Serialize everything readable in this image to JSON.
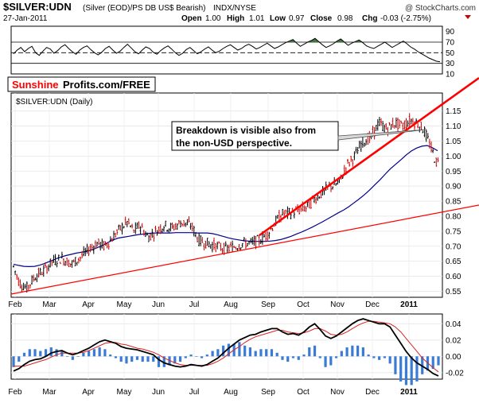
{
  "header": {
    "symbol": "$SILVER:UDN",
    "description": "(Silver (EOD)/PS DB US$ Bearish)",
    "exchange": "INDX/NYSE",
    "watermark": "@ StockCharts.com",
    "date": "27-Jan-2011",
    "ohlc": {
      "open_label": "Open",
      "open": "1.00",
      "high_label": "High",
      "high": "1.01",
      "low_label": "Low",
      "low": "0.97",
      "close_label": "Close",
      "close": "0.98",
      "chg_label": "Chg",
      "chg": "-0.03 (-2.75%)"
    }
  },
  "brand": {
    "part1": "Sunshine",
    "part2": "Profits.com/FREE"
  },
  "colors": {
    "price_up": "#000000",
    "price_down": "#cc0000",
    "moving_average": "#00008b",
    "trendline": "#ff0000",
    "histogram": "#3a7bd5",
    "rsi_fill": "#3c7a3c"
  },
  "chart_data": [
    {
      "type": "line",
      "panel": "rsi",
      "y_ticks": [
        10,
        30,
        50,
        70,
        90
      ],
      "ylim": [
        10,
        100
      ],
      "reference_lines": [
        30,
        50,
        70
      ],
      "values": [
        48,
        55,
        60,
        52,
        58,
        62,
        50,
        45,
        53,
        60,
        57,
        49,
        54,
        61,
        65,
        58,
        52,
        47,
        55,
        60,
        63,
        56,
        50,
        46,
        51,
        58,
        62,
        55,
        49,
        53,
        60,
        66,
        59,
        52,
        48,
        55,
        61,
        58,
        51,
        47,
        54,
        59,
        63,
        57,
        50,
        45,
        49,
        56,
        60,
        54,
        48,
        52,
        57,
        61,
        55,
        50,
        53,
        58,
        62,
        65,
        60,
        55,
        58,
        63,
        66,
        62,
        57,
        60,
        64,
        68,
        63,
        58,
        61,
        65,
        69,
        72,
        75,
        68,
        62,
        66,
        70,
        73,
        77,
        71,
        65,
        60,
        63,
        67,
        72,
        76,
        70,
        64,
        68,
        71,
        74,
        69,
        63,
        60,
        58,
        62,
        66,
        70,
        65,
        60,
        64,
        68,
        72,
        67,
        61,
        57,
        52,
        48,
        44,
        40,
        37,
        34,
        33
      ]
    },
    {
      "type": "bar",
      "panel": "price",
      "title": "$SILVER:UDN (Daily)",
      "ylim": [
        0.53,
        1.21
      ],
      "y_ticks": [
        0.55,
        0.6,
        0.65,
        0.7,
        0.75,
        0.8,
        0.85,
        0.9,
        0.95,
        1.0,
        1.05,
        1.1,
        1.15
      ],
      "x_tick_labels": [
        "Feb",
        "Mar",
        "Apr",
        "May",
        "Jun",
        "Jul",
        "Aug",
        "Sep",
        "Oct",
        "Nov",
        "Dec",
        "2011"
      ],
      "moving_average_values": [
        0.64,
        0.636,
        0.633,
        0.632,
        0.633,
        0.637,
        0.643,
        0.65,
        0.657,
        0.664,
        0.669,
        0.673,
        0.677,
        0.68,
        0.683,
        0.688,
        0.695,
        0.703,
        0.712,
        0.721,
        0.727,
        0.73,
        0.733,
        0.736,
        0.739,
        0.741,
        0.743,
        0.744,
        0.744,
        0.744,
        0.744,
        0.745,
        0.745,
        0.745,
        0.745,
        0.744,
        0.744,
        0.744,
        0.742,
        0.738,
        0.733,
        0.728,
        0.724,
        0.721,
        0.718,
        0.717,
        0.716,
        0.716,
        0.716,
        0.717,
        0.719,
        0.722,
        0.727,
        0.733,
        0.74,
        0.747,
        0.755,
        0.763,
        0.772,
        0.781,
        0.791,
        0.801,
        0.811,
        0.82,
        0.831,
        0.844,
        0.857,
        0.871,
        0.887,
        0.904,
        0.921,
        0.94,
        0.958,
        0.973,
        0.988,
        1.004,
        1.017,
        1.027,
        1.033,
        1.035,
        1.028,
        1.018
      ]
    },
    {
      "type": "line",
      "panel": "macd",
      "y_ticks": [
        -0.02,
        0.0,
        0.02,
        0.04
      ],
      "ylim": [
        -0.028,
        0.052
      ],
      "macd_values": [
        -0.018,
        -0.015,
        -0.01,
        -0.006,
        -0.004,
        -0.003,
        0.0,
        0.004,
        0.006,
        0.007,
        0.004,
        0.002,
        0.004,
        0.007,
        0.01,
        0.014,
        0.018,
        0.02,
        0.018,
        0.016,
        0.012,
        0.01,
        0.009,
        0.008,
        0.006,
        0.004,
        0.002,
        -0.004,
        -0.008,
        -0.01,
        -0.012,
        -0.013,
        -0.012,
        -0.01,
        -0.011,
        -0.012,
        -0.01,
        -0.006,
        -0.002,
        0.004,
        0.01,
        0.015,
        0.02,
        0.023,
        0.026,
        0.027,
        0.03,
        0.032,
        0.034,
        0.034,
        0.03,
        0.027,
        0.028,
        0.026,
        0.03,
        0.036,
        0.04,
        0.033,
        0.025,
        0.022,
        0.025,
        0.03,
        0.035,
        0.04,
        0.044,
        0.046,
        0.044,
        0.042,
        0.04,
        0.04,
        0.036,
        0.026,
        0.016,
        0.006,
        -0.002,
        -0.008,
        -0.012,
        -0.016,
        -0.021,
        -0.024
      ],
      "signal_values": [
        -0.012,
        -0.012,
        -0.012,
        -0.01,
        -0.008,
        -0.006,
        -0.004,
        -0.001,
        0.002,
        0.004,
        0.004,
        0.004,
        0.004,
        0.005,
        0.007,
        0.01,
        0.013,
        0.016,
        0.017,
        0.017,
        0.015,
        0.014,
        0.012,
        0.01,
        0.009,
        0.007,
        0.005,
        0.002,
        -0.002,
        -0.005,
        -0.008,
        -0.01,
        -0.011,
        -0.011,
        -0.011,
        -0.011,
        -0.011,
        -0.009,
        -0.006,
        -0.002,
        0.003,
        0.008,
        0.012,
        0.017,
        0.021,
        0.024,
        0.026,
        0.028,
        0.03,
        0.032,
        0.032,
        0.03,
        0.029,
        0.028,
        0.029,
        0.031,
        0.034,
        0.034,
        0.031,
        0.027,
        0.026,
        0.027,
        0.03,
        0.034,
        0.038,
        0.041,
        0.043,
        0.043,
        0.042,
        0.041,
        0.04,
        0.036,
        0.03,
        0.022,
        0.014,
        0.006,
        -0.002,
        -0.008,
        -0.014,
        -0.019
      ]
    }
  ],
  "annotation": {
    "line1": "Breakdown is visible also from",
    "line2": "the non-USD perspective."
  }
}
